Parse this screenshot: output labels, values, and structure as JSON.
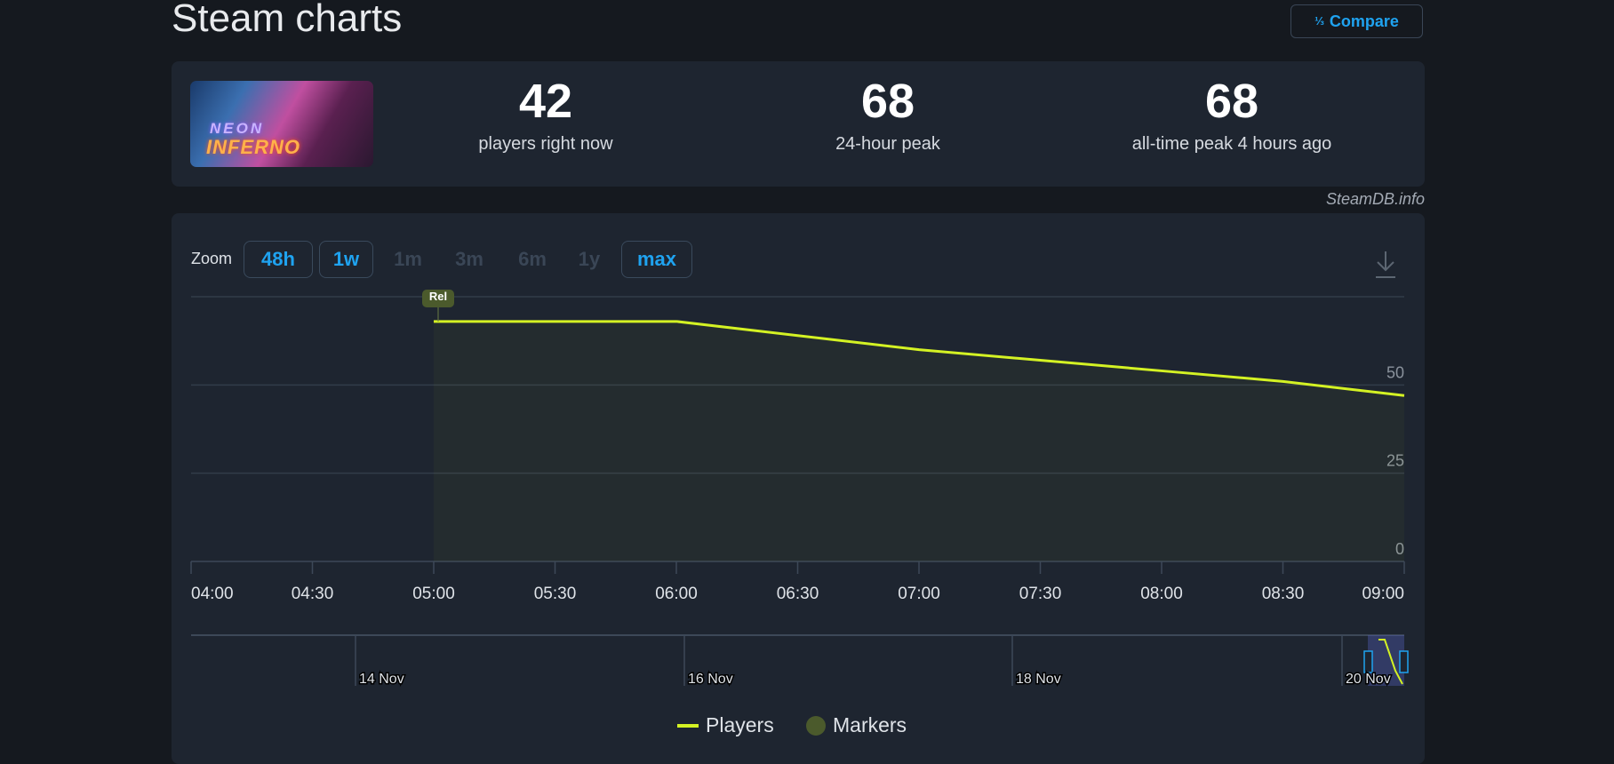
{
  "header": {
    "title": "Steam charts",
    "compare_label": "Compare",
    "compare_icon": "fraction-123-icon"
  },
  "game": {
    "name_logo": "NEON INFERNO"
  },
  "stats": [
    {
      "value": "42",
      "label": "players right now"
    },
    {
      "value": "68",
      "label": "24-hour peak"
    },
    {
      "value": "68",
      "label": "all-time peak 4 hours ago"
    }
  ],
  "credit": "SteamDB.info",
  "zoom": {
    "label": "Zoom",
    "buttons": [
      {
        "label": "48h",
        "enabled": true
      },
      {
        "label": "1w",
        "enabled": true
      },
      {
        "label": "1m",
        "enabled": false
      },
      {
        "label": "3m",
        "enabled": false
      },
      {
        "label": "6m",
        "enabled": false
      },
      {
        "label": "1y",
        "enabled": false
      },
      {
        "label": "max",
        "enabled": true
      }
    ],
    "download_icon": "download-icon"
  },
  "colors": {
    "line": "#d4f224",
    "accent": "#1fa3f0",
    "marker": "#4b5a2c"
  },
  "chart_data": {
    "type": "area",
    "x": [
      "04:00",
      "04:30",
      "05:00",
      "05:30",
      "06:00",
      "06:30",
      "07:00",
      "07:30",
      "08:00",
      "08:30",
      "09:00"
    ],
    "series": [
      {
        "name": "Players",
        "points": [
          [
            "05:00",
            68
          ],
          [
            "05:30",
            68
          ],
          [
            "06:00",
            68
          ],
          [
            "06:30",
            64
          ],
          [
            "07:00",
            60
          ],
          [
            "07:30",
            57
          ],
          [
            "08:00",
            54
          ],
          [
            "08:30",
            51
          ],
          [
            "09:00",
            47
          ]
        ]
      }
    ],
    "yticks": [
      "0",
      "25",
      "50"
    ],
    "ylim": [
      0,
      75
    ],
    "grid": true,
    "markers": [
      {
        "x": "05:00",
        "label": "Rel"
      }
    ],
    "navigator_labels": [
      "14 Nov",
      "16 Nov",
      "18 Nov",
      "20 Nov"
    ],
    "legend": [
      {
        "label": "Players"
      },
      {
        "label": "Markers"
      }
    ],
    "legend_position": "bottom"
  }
}
